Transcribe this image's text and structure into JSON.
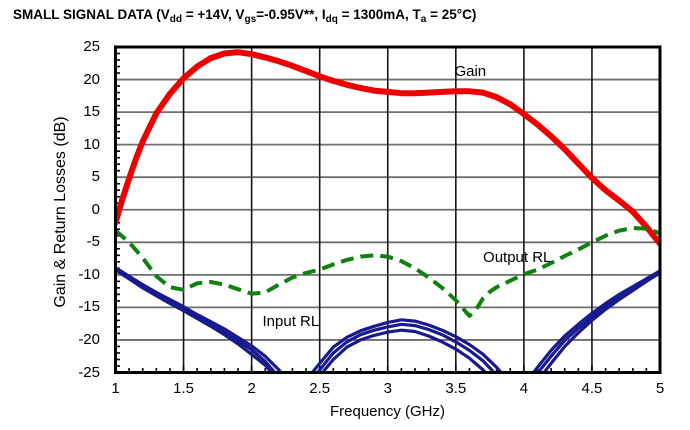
{
  "title_segments": [
    {
      "text": "SMALL SIGNAL DATA (V"
    },
    {
      "text": "dd",
      "sub": true
    },
    {
      "text": " = +14V, V"
    },
    {
      "text": "gs",
      "sub": true
    },
    {
      "text": "=-0.95V**, I"
    },
    {
      "text": "dq",
      "sub": true
    },
    {
      "text": " = 1300mA, T"
    },
    {
      "text": "a",
      "sub": true
    },
    {
      "text": " = 25°C)"
    }
  ],
  "chart_data": {
    "type": "line",
    "title": "SMALL SIGNAL DATA (Vdd = +14V, Vgs=-0.95V**, Idq = 1300mA, Ta = 25°C)",
    "xlabel": "Frequency (GHz)",
    "ylabel": "Gain & Return Losses (dB)",
    "xlim": [
      1,
      5
    ],
    "ylim": [
      -25,
      25
    ],
    "x_ticks": [
      1,
      1.5,
      2,
      2.5,
      3,
      3.5,
      4,
      4.5,
      5
    ],
    "x_tick_labels": [
      "1",
      "1.5",
      "2",
      "2.5",
      "3",
      "3.5",
      "4",
      "4.5",
      "5"
    ],
    "y_ticks": [
      25,
      20,
      15,
      10,
      5,
      0,
      -5,
      -10,
      -15,
      -20,
      -25
    ],
    "y_tick_labels": [
      "25",
      "20",
      "15",
      "10",
      "5",
      "0",
      "-5",
      "-10",
      "-15",
      "-20",
      "-25"
    ],
    "x_minor_step": 0.1,
    "y_minor_step": 1,
    "grid": true,
    "legend_position": "inline-annotations",
    "colors": {
      "gain": "#ee0000",
      "output_rl": "#108010",
      "input_rl": "#1a1a90",
      "h_grid": "#6f6f6f",
      "v_grid": "#161616",
      "border": "#000000"
    },
    "annotations": [
      {
        "text": "Gain",
        "x": 3.49,
        "y": 22.6,
        "name": "gain-label"
      },
      {
        "text": "Output RL",
        "x": 3.7,
        "y": -6.0,
        "name": "output-rl-label"
      },
      {
        "text": "Input RL",
        "x": 2.08,
        "y": -15.8,
        "name": "input-rl-label"
      }
    ],
    "series": [
      {
        "name": "Gain",
        "color": "#ee0000",
        "style": "solid",
        "width": 6,
        "x": [
          1,
          1.05,
          1.1,
          1.15,
          1.2,
          1.3,
          1.4,
          1.5,
          1.6,
          1.7,
          1.8,
          1.9,
          2.0,
          2.1,
          2.2,
          2.3,
          2.4,
          2.5,
          2.6,
          2.7,
          2.8,
          2.9,
          3.0,
          3.1,
          3.2,
          3.3,
          3.4,
          3.5,
          3.6,
          3.7,
          3.8,
          3.9,
          4.0,
          4.1,
          4.2,
          4.3,
          4.4,
          4.5,
          4.6,
          4.7,
          4.8,
          4.9,
          5.0
        ],
        "y": [
          -2,
          1.6,
          4.8,
          7.8,
          10.5,
          14.8,
          17.8,
          20.2,
          22.0,
          23.3,
          24.0,
          24.2,
          23.9,
          23.4,
          22.8,
          22.1,
          21.3,
          20.5,
          19.8,
          19.2,
          18.7,
          18.3,
          18.1,
          17.9,
          17.9,
          18.0,
          18.1,
          18.2,
          18.2,
          18.0,
          17.3,
          16.2,
          14.7,
          13.1,
          11.3,
          9.3,
          7.1,
          4.9,
          3.0,
          1.4,
          -0.3,
          -2.6,
          -5.2
        ]
      },
      {
        "name": "Output RL",
        "color": "#108010",
        "style": "dashed",
        "width": 4,
        "x": [
          1,
          1.1,
          1.2,
          1.3,
          1.4,
          1.5,
          1.6,
          1.7,
          1.8,
          1.9,
          2.0,
          2.1,
          2.2,
          2.3,
          2.4,
          2.5,
          2.6,
          2.7,
          2.8,
          2.9,
          3.0,
          3.1,
          3.2,
          3.3,
          3.4,
          3.5,
          3.55,
          3.6,
          3.65,
          3.7,
          3.75,
          3.8,
          3.9,
          4.0,
          4.1,
          4.2,
          4.3,
          4.4,
          4.5,
          4.6,
          4.7,
          4.8,
          4.9,
          5.0
        ],
        "y": [
          -3.2,
          -5.0,
          -7.4,
          -10.2,
          -11.9,
          -12.3,
          -11.3,
          -11.1,
          -11.5,
          -12.2,
          -12.9,
          -12.7,
          -11.5,
          -10.4,
          -9.7,
          -9.2,
          -8.4,
          -7.7,
          -7.2,
          -7.0,
          -7.2,
          -7.9,
          -9.0,
          -10.4,
          -12.0,
          -13.9,
          -15.1,
          -16.3,
          -15.3,
          -13.6,
          -12.6,
          -11.9,
          -10.9,
          -9.9,
          -9.2,
          -8.2,
          -7.1,
          -6.1,
          -5.0,
          -4.0,
          -3.2,
          -2.8,
          -2.9,
          -3.6
        ]
      },
      {
        "name": "Input RL (trace 1)",
        "color": "#1a1a90",
        "style": "solid",
        "width": 3.2,
        "x": [
          1,
          1.1,
          1.2,
          1.3,
          1.4,
          1.5,
          1.6,
          1.7,
          1.8,
          1.9,
          2.0,
          2.1,
          2.2,
          2.3,
          2.4,
          2.45,
          2.5,
          2.6,
          2.7,
          2.8,
          2.9,
          3.0,
          3.1,
          3.2,
          3.3,
          3.4,
          3.5,
          3.6,
          3.7,
          3.8,
          3.9,
          4.0,
          4.1,
          4.2,
          4.3,
          4.4,
          4.5,
          4.6,
          4.7,
          4.8,
          4.9,
          5.0
        ],
        "y": [
          -8.9,
          -10.2,
          -11.5,
          -12.7,
          -13.8,
          -14.9,
          -16.1,
          -17.2,
          -18.3,
          -19.6,
          -20.9,
          -22.5,
          -24.6,
          -27.2,
          -26.0,
          -24.9,
          -23.6,
          -21.1,
          -19.6,
          -18.6,
          -17.9,
          -17.3,
          -16.9,
          -17.1,
          -17.7,
          -18.5,
          -19.5,
          -20.7,
          -22.2,
          -24.2,
          -26.6,
          -26.9,
          -24.2,
          -21.6,
          -19.4,
          -17.6,
          -15.9,
          -14.4,
          -13.0,
          -11.8,
          -10.6,
          -9.4
        ]
      },
      {
        "name": "Input RL (trace 2)",
        "color": "#1a1a90",
        "style": "solid",
        "width": 3.2,
        "x": [
          1,
          1.1,
          1.2,
          1.3,
          1.4,
          1.5,
          1.6,
          1.7,
          1.8,
          1.9,
          2.0,
          2.1,
          2.2,
          2.3,
          2.4,
          2.45,
          2.5,
          2.6,
          2.7,
          2.8,
          2.9,
          3.0,
          3.1,
          3.2,
          3.3,
          3.4,
          3.5,
          3.6,
          3.7,
          3.8,
          3.9,
          4.0,
          4.1,
          4.2,
          4.3,
          4.4,
          4.5,
          4.6,
          4.7,
          4.8,
          4.9,
          5.0
        ],
        "y": [
          -9.1,
          -10.4,
          -11.8,
          -13.0,
          -14.1,
          -15.2,
          -16.4,
          -17.6,
          -18.8,
          -20.1,
          -21.5,
          -23.3,
          -25.7,
          -27.8,
          -26.8,
          -26.0,
          -24.6,
          -22.0,
          -20.3,
          -19.2,
          -18.5,
          -18.0,
          -17.6,
          -17.8,
          -18.4,
          -19.2,
          -20.3,
          -21.6,
          -23.2,
          -25.4,
          -27.4,
          -27.6,
          -25.1,
          -22.5,
          -20.1,
          -18.2,
          -16.5,
          -14.9,
          -13.4,
          -12.1,
          -10.8,
          -9.55
        ]
      },
      {
        "name": "Input RL (trace 3)",
        "color": "#1a1a90",
        "style": "solid",
        "width": 3.2,
        "x": [
          1,
          1.1,
          1.2,
          1.3,
          1.4,
          1.5,
          1.6,
          1.7,
          1.8,
          1.9,
          2.0,
          2.1,
          2.2,
          2.3,
          2.4,
          2.45,
          2.5,
          2.6,
          2.7,
          2.8,
          2.9,
          3.0,
          3.1,
          3.2,
          3.3,
          3.4,
          3.5,
          3.6,
          3.7,
          3.8,
          3.9,
          4.0,
          4.1,
          4.2,
          4.3,
          4.4,
          4.5,
          4.6,
          4.7,
          4.8,
          4.9,
          5.0
        ],
        "y": [
          -9.3,
          -10.6,
          -12.0,
          -13.2,
          -14.4,
          -15.5,
          -16.7,
          -17.9,
          -19.2,
          -20.6,
          -22.2,
          -23.9,
          -26.3,
          -28.4,
          -27.6,
          -26.9,
          -25.5,
          -23.0,
          -21.1,
          -20.0,
          -19.3,
          -18.8,
          -18.5,
          -18.7,
          -19.4,
          -20.3,
          -21.4,
          -22.8,
          -24.6,
          -26.8,
          -28.2,
          -28.3,
          -26.3,
          -23.6,
          -21.0,
          -18.9,
          -17.0,
          -15.3,
          -13.8,
          -12.4,
          -11.0,
          -9.7
        ]
      }
    ]
  }
}
